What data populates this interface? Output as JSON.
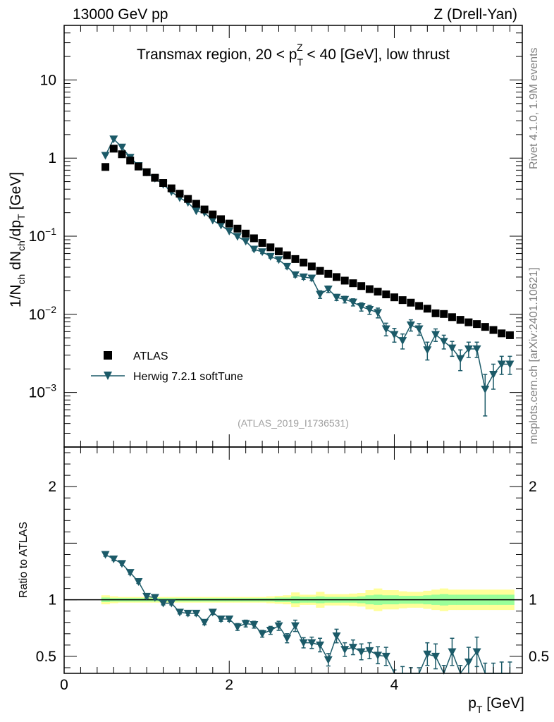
{
  "header": {
    "left": "13000 GeV pp",
    "right": "Z (Drell-Yan)"
  },
  "side_labels": {
    "rivet": "Rivet 4.1.0,  1.9M events",
    "mcplots": "mcplots.cern.ch [arXiv:2401.10621]"
  },
  "watermark": "(ATLAS_2019_I1736531)",
  "colors": {
    "atlas": "#000000",
    "herwig": "#1b5a68",
    "band_inner": "#99ff99",
    "band_outer": "#ffff99"
  },
  "chart_data": [
    {
      "type": "scatter",
      "panel": "main",
      "title": "Transmax region, 20 < p_T^Z < 40 [GeV], low thrust",
      "ylabel": "1/N_ch dN_ch/dp_T [GeV]",
      "yscale": "log",
      "xlim": [
        0,
        5.55
      ],
      "ylim": [
        0.0002,
        50
      ],
      "yticks": [
        {
          "value": 0.001,
          "base": "10",
          "exp": "−3"
        },
        {
          "value": 0.01,
          "base": "10",
          "exp": "−2"
        },
        {
          "value": 0.1,
          "base": "10",
          "exp": "−1"
        },
        {
          "value": 1,
          "base": "1",
          "exp": ""
        },
        {
          "value": 10,
          "base": "10",
          "exp": ""
        }
      ],
      "legend": {
        "position": "bottom-left",
        "entries": [
          "ATLAS",
          "Herwig 7.2.1 softTune"
        ]
      },
      "series": [
        {
          "name": "ATLAS",
          "marker": "square",
          "x": [
            0.5,
            0.6,
            0.7,
            0.8,
            0.9,
            1.0,
            1.1,
            1.2,
            1.3,
            1.4,
            1.5,
            1.6,
            1.7,
            1.8,
            1.9,
            2.0,
            2.1,
            2.2,
            2.3,
            2.4,
            2.5,
            2.6,
            2.7,
            2.8,
            2.9,
            3.0,
            3.1,
            3.2,
            3.3,
            3.4,
            3.5,
            3.6,
            3.7,
            3.8,
            3.9,
            4.0,
            4.1,
            4.2,
            4.3,
            4.4,
            4.5,
            4.6,
            4.7,
            4.8,
            4.9,
            5.0,
            5.1,
            5.2,
            5.3,
            5.4
          ],
          "y": [
            0.77,
            1.32,
            1.12,
            0.93,
            0.78,
            0.66,
            0.56,
            0.48,
            0.41,
            0.35,
            0.3,
            0.26,
            0.22,
            0.19,
            0.165,
            0.145,
            0.125,
            0.108,
            0.094,
            0.082,
            0.072,
            0.064,
            0.057,
            0.051,
            0.046,
            0.041,
            0.036,
            0.033,
            0.03,
            0.027,
            0.025,
            0.023,
            0.021,
            0.0195,
            0.018,
            0.0165,
            0.0152,
            0.0141,
            0.0128,
            0.0118,
            0.0103,
            0.0101,
            0.0092,
            0.0085,
            0.0079,
            0.0075,
            0.0069,
            0.0063,
            0.0057,
            0.0054
          ]
        },
        {
          "name": "Herwig 7.2.1 softTune",
          "marker": "triangle-down",
          "x": [
            0.5,
            0.6,
            0.7,
            0.8,
            0.9,
            1.0,
            1.1,
            1.2,
            1.3,
            1.4,
            1.5,
            1.6,
            1.7,
            1.8,
            1.9,
            2.0,
            2.1,
            2.2,
            2.3,
            2.4,
            2.5,
            2.6,
            2.7,
            2.8,
            2.9,
            3.0,
            3.1,
            3.2,
            3.3,
            3.4,
            3.5,
            3.6,
            3.7,
            3.8,
            3.9,
            4.0,
            4.1,
            4.2,
            4.3,
            4.4,
            4.5,
            4.6,
            4.7,
            4.8,
            4.9,
            5.0,
            5.1,
            5.2,
            5.3,
            5.4
          ],
          "y": [
            1.08,
            1.75,
            1.38,
            1.02,
            0.8,
            0.66,
            0.55,
            0.46,
            0.37,
            0.31,
            0.27,
            0.21,
            0.2,
            0.16,
            0.138,
            0.116,
            0.099,
            0.086,
            0.068,
            0.063,
            0.055,
            0.05,
            0.041,
            0.032,
            0.03,
            0.029,
            0.018,
            0.021,
            0.0165,
            0.0155,
            0.0143,
            0.0125,
            0.0115,
            0.0105,
            0.0065,
            0.0055,
            0.0046,
            0.0073,
            0.0065,
            0.0035,
            0.0055,
            0.0045,
            0.0037,
            0.0027,
            0.0036,
            0.0036,
            0.0011,
            0.0017,
            0.0023,
            0.0023
          ],
          "err": [
            0.02,
            0.03,
            0.03,
            0.02,
            0.02,
            0.015,
            0.012,
            0.01,
            0.008,
            0.007,
            0.006,
            0.005,
            0.005,
            0.004,
            0.004,
            0.004,
            0.003,
            0.003,
            0.003,
            0.003,
            0.0025,
            0.0025,
            0.0025,
            0.002,
            0.002,
            0.002,
            0.002,
            0.002,
            0.0015,
            0.0015,
            0.0015,
            0.0015,
            0.0015,
            0.0015,
            0.0012,
            0.0011,
            0.001,
            0.0012,
            0.0011,
            0.0009,
            0.001,
            0.0009,
            0.0008,
            0.0008,
            0.0008,
            0.0008,
            0.0006,
            0.0006,
            0.0006,
            0.0006
          ]
        }
      ]
    },
    {
      "type": "scatter",
      "panel": "ratio",
      "ylabel": "Ratio to ATLAS",
      "xlabel": "p_T [GeV]",
      "xlim": [
        0,
        5.55
      ],
      "ylim": [
        0.35,
        2.35
      ],
      "xticks": [
        0,
        2,
        4
      ],
      "yticks": [
        0.5,
        1,
        2
      ],
      "reference_line": 1,
      "band": {
        "x": [
          0.5,
          0.6,
          0.7,
          0.8,
          0.9,
          1.0,
          1.1,
          1.2,
          1.3,
          1.4,
          1.5,
          1.6,
          1.7,
          1.8,
          1.9,
          2.0,
          2.1,
          2.2,
          2.3,
          2.4,
          2.5,
          2.6,
          2.7,
          2.8,
          2.9,
          3.0,
          3.1,
          3.2,
          3.3,
          3.4,
          3.5,
          3.6,
          3.7,
          3.8,
          3.9,
          4.0,
          4.1,
          4.2,
          4.3,
          4.4,
          4.5,
          4.6,
          4.7,
          4.8,
          4.9,
          5.0,
          5.1,
          5.2,
          5.3,
          5.4
        ],
        "inner": [
          0.02,
          0.015,
          0.015,
          0.015,
          0.015,
          0.015,
          0.015,
          0.015,
          0.015,
          0.015,
          0.015,
          0.015,
          0.015,
          0.015,
          0.015,
          0.015,
          0.015,
          0.015,
          0.015,
          0.015,
          0.015,
          0.02,
          0.02,
          0.03,
          0.025,
          0.025,
          0.03,
          0.025,
          0.025,
          0.025,
          0.025,
          0.03,
          0.04,
          0.045,
          0.04,
          0.04,
          0.035,
          0.035,
          0.035,
          0.04,
          0.045,
          0.05,
          0.045,
          0.045,
          0.045,
          0.045,
          0.045,
          0.045,
          0.045,
          0.045
        ],
        "outer": [
          0.04,
          0.03,
          0.025,
          0.025,
          0.025,
          0.025,
          0.025,
          0.025,
          0.025,
          0.025,
          0.025,
          0.025,
          0.025,
          0.025,
          0.025,
          0.025,
          0.025,
          0.025,
          0.025,
          0.025,
          0.03,
          0.035,
          0.04,
          0.065,
          0.045,
          0.045,
          0.07,
          0.05,
          0.05,
          0.05,
          0.055,
          0.06,
          0.085,
          0.1,
          0.085,
          0.085,
          0.075,
          0.07,
          0.07,
          0.08,
          0.09,
          0.1,
          0.09,
          0.09,
          0.09,
          0.09,
          0.09,
          0.09,
          0.09,
          0.09
        ]
      },
      "series": [
        {
          "name": "Herwig 7.2.1 softTune",
          "marker": "triangle-down",
          "x": [
            0.5,
            0.6,
            0.7,
            0.8,
            0.9,
            1.0,
            1.1,
            1.2,
            1.3,
            1.4,
            1.5,
            1.6,
            1.7,
            1.8,
            1.9,
            2.0,
            2.1,
            2.2,
            2.3,
            2.4,
            2.5,
            2.6,
            2.7,
            2.8,
            2.9,
            3.0,
            3.1,
            3.2,
            3.3,
            3.4,
            3.5,
            3.6,
            3.7,
            3.8,
            3.9,
            4.0,
            4.1,
            4.2,
            4.3,
            4.4,
            4.5,
            4.6,
            4.7,
            4.8,
            4.9,
            5.0,
            5.1,
            5.2,
            5.3,
            5.4
          ],
          "y": [
            1.4,
            1.36,
            1.32,
            1.24,
            1.16,
            1.03,
            1.02,
            0.97,
            0.97,
            0.89,
            0.88,
            0.88,
            0.8,
            0.89,
            0.83,
            0.83,
            0.76,
            0.79,
            0.78,
            0.7,
            0.73,
            0.77,
            0.66,
            0.77,
            0.62,
            0.62,
            0.6,
            0.47,
            0.68,
            0.56,
            0.58,
            0.54,
            0.55,
            0.51,
            0.5,
            0.3,
            0.32,
            0.3,
            0.3,
            0.52,
            0.5,
            0.31,
            0.54,
            0.3,
            0.45,
            0.54,
            0.3,
            0.3,
            0.3,
            0.3
          ],
          "err": [
            0.015,
            0.015,
            0.015,
            0.015,
            0.015,
            0.015,
            0.015,
            0.015,
            0.015,
            0.015,
            0.02,
            0.02,
            0.02,
            0.02,
            0.02,
            0.02,
            0.03,
            0.03,
            0.03,
            0.03,
            0.035,
            0.04,
            0.04,
            0.05,
            0.045,
            0.05,
            0.06,
            0.055,
            0.06,
            0.06,
            0.065,
            0.07,
            0.07,
            0.075,
            0.08,
            0.08,
            0.09,
            0.1,
            0.1,
            0.1,
            0.11,
            0.11,
            0.12,
            0.12,
            0.13,
            0.13,
            0.14,
            0.14,
            0.15,
            0.15
          ]
        }
      ]
    }
  ]
}
